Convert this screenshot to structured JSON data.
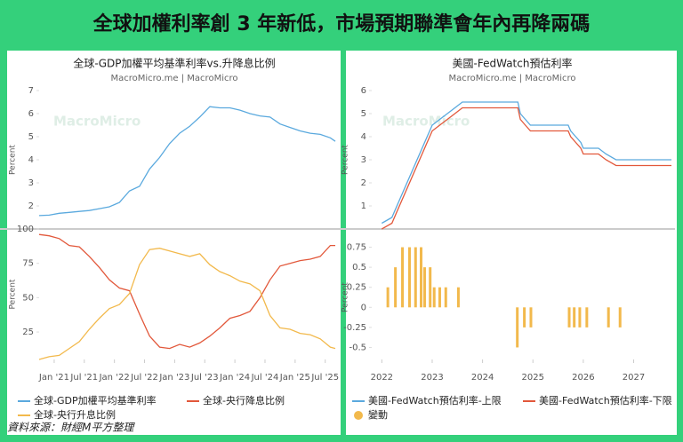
{
  "title": "全球加權利率創 3 年新低，市場預期聯準會年內再降兩碼",
  "source": "資料來源：財經M平方整理",
  "watermark": "MacroMicro",
  "chart_data": [
    {
      "type": "line",
      "title": "全球-GDP加權平均基準利率vs.升降息比例",
      "subtitle": "MacroMicro.me | MacroMicro",
      "x": [
        "2020-10",
        "2020-12",
        "2021-02",
        "2021-04",
        "2021-06",
        "2021-08",
        "2021-10",
        "2021-12",
        "2022-02",
        "2022-04",
        "2022-06",
        "2022-08",
        "2022-10",
        "2022-12",
        "2023-02",
        "2023-04",
        "2023-06",
        "2023-08",
        "2023-10",
        "2023-12",
        "2024-02",
        "2024-04",
        "2024-06",
        "2024-08",
        "2024-10",
        "2024-12",
        "2025-02",
        "2025-04",
        "2025-06",
        "2025-08",
        "2025-09"
      ],
      "xlim": [
        "2020-10",
        "2025-09"
      ],
      "xticks": [
        {
          "value": "2021-01",
          "label": "Jan '21"
        },
        {
          "value": "2021-07",
          "label": "Jul '21"
        },
        {
          "value": "2022-01",
          "label": "Jan '22"
        },
        {
          "value": "2022-07",
          "label": "Jul '22"
        },
        {
          "value": "2023-01",
          "label": "Jan '23"
        },
        {
          "value": "2023-07",
          "label": "Jul '23"
        },
        {
          "value": "2024-01",
          "label": "Jan '24"
        },
        {
          "value": "2024-07",
          "label": "Jul '24"
        },
        {
          "value": "2025-01",
          "label": "Jan '25"
        },
        {
          "value": "2025-07",
          "label": "Jul '25"
        }
      ],
      "panels": [
        {
          "ylabel": "Percent",
          "ylim": [
            1,
            7
          ],
          "yticks": [
            2,
            3,
            4,
            5,
            6,
            7
          ],
          "series": [
            {
              "name": "全球-GDP加權平均基準利率",
              "type": "line",
              "color": "#5aa9de",
              "values": [
                1.58,
                1.6,
                1.68,
                1.72,
                1.76,
                1.8,
                1.88,
                1.96,
                2.15,
                2.65,
                2.85,
                3.6,
                4.1,
                4.7,
                5.15,
                5.45,
                5.85,
                6.3,
                6.25,
                6.25,
                6.15,
                6.0,
                5.9,
                5.85,
                5.55,
                5.4,
                5.25,
                5.15,
                5.1,
                4.95,
                4.8
              ]
            }
          ]
        },
        {
          "ylabel": "Percent",
          "ylim": [
            5,
            100
          ],
          "yticks": [
            25,
            50,
            75,
            100
          ],
          "series": [
            {
              "name": "全球-央行降息比例",
              "type": "line",
              "color": "#e2583b",
              "values": [
                96,
                95,
                93,
                88,
                87,
                80,
                72,
                63,
                57,
                55,
                38,
                22,
                14,
                13,
                16,
                14,
                17,
                22,
                28,
                35,
                37,
                40,
                50,
                63,
                73,
                75,
                77,
                78,
                80,
                88,
                88
              ]
            },
            {
              "name": "全球-央行升息比例",
              "type": "line",
              "color": "#f2b94c",
              "values": [
                5,
                7,
                8,
                13,
                18,
                27,
                35,
                42,
                45,
                53,
                74,
                85,
                86,
                84,
                82,
                80,
                82,
                74,
                69,
                66,
                62,
                60,
                55,
                37,
                28,
                27,
                24,
                23,
                20,
                14,
                13
              ]
            }
          ]
        }
      ]
    },
    {
      "type": "line",
      "title": "美國-FedWatch預估利率",
      "subtitle": "MacroMicro.me | MacroMicro",
      "x": [
        2022.0,
        2022.2,
        2022.3,
        2022.45,
        2022.6,
        2022.75,
        2022.9,
        2023.0,
        2023.15,
        2023.3,
        2023.45,
        2023.6,
        2024.7,
        2024.75,
        2024.85,
        2024.95,
        2025.7,
        2025.75,
        2025.85,
        2025.95,
        2026.0,
        2026.3,
        2026.45,
        2026.65,
        2027.75
      ],
      "xlim": [
        2021.8,
        2027.75
      ],
      "xticks": [
        2022,
        2023,
        2024,
        2025,
        2026,
        2027
      ],
      "panels": [
        {
          "ylabel": "Percent",
          "ylim": [
            0,
            6
          ],
          "yticks": [
            1,
            2,
            3,
            4,
            5,
            6
          ],
          "series": [
            {
              "name": "美國-FedWatch預估利率-上限",
              "type": "line",
              "color": "#5aa9de",
              "values": [
                0.25,
                0.5,
                1.0,
                1.75,
                2.5,
                3.25,
                4.0,
                4.5,
                4.75,
                5.0,
                5.25,
                5.5,
                5.5,
                5.0,
                4.75,
                4.5,
                4.5,
                4.25,
                4.0,
                3.75,
                3.5,
                3.5,
                3.25,
                3.0,
                3.0
              ]
            },
            {
              "name": "美國-FedWatch預估利率-下限",
              "type": "line",
              "color": "#e2583b",
              "values": [
                0,
                0.25,
                0.75,
                1.5,
                2.25,
                3.0,
                3.75,
                4.25,
                4.5,
                4.75,
                5.0,
                5.25,
                5.25,
                4.75,
                4.5,
                4.25,
                4.25,
                4.0,
                3.75,
                3.5,
                3.25,
                3.25,
                3.0,
                2.75,
                2.75
              ]
            }
          ]
        },
        {
          "ylabel": "Percent",
          "ylim": [
            -0.65,
            0.9
          ],
          "yticks": [
            -0.5,
            -0.25,
            0,
            0.25,
            0.5,
            0.75
          ],
          "series": [
            {
              "name": "變動",
              "type": "bar",
              "color": "#f2b94c",
              "x": [
                2022.12,
                2022.27,
                2022.41,
                2022.55,
                2022.67,
                2022.78,
                2022.85,
                2022.96,
                2023.04,
                2023.15,
                2023.27,
                2023.52,
                2024.69,
                2024.83,
                2024.96,
                2025.72,
                2025.82,
                2025.93,
                2026.07,
                2026.5,
                2026.73
              ],
              "values": [
                0.25,
                0.5,
                0.75,
                0.75,
                0.75,
                0.75,
                0.5,
                0.5,
                0.25,
                0.25,
                0.25,
                0.25,
                -0.5,
                -0.25,
                -0.25,
                -0.25,
                -0.25,
                -0.25,
                -0.25,
                -0.25,
                -0.25
              ]
            }
          ]
        }
      ]
    }
  ]
}
